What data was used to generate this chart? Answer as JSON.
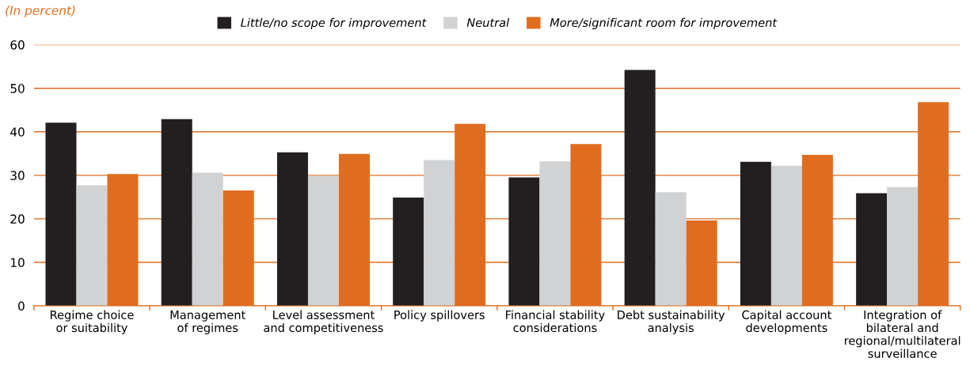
{
  "chart_data": {
    "type": "bar",
    "subtitle": "(In percent)",
    "categories": [
      "Regime choice\nor suitability",
      "Management\nof regimes",
      "Level assessment\nand competitiveness",
      "Policy spillovers",
      "Financial stability\nconsiderations",
      "Debt sustainability\nanalysis",
      "Capital account\ndevelopments",
      "Integration of\nbilateral and\nregional/multilateral\nsurveillance"
    ],
    "series": [
      {
        "name": "Little/no scope for improvement",
        "color": "#231f20",
        "values": [
          42.1,
          42.9,
          35.3,
          24.9,
          29.5,
          54.2,
          33.1,
          25.9
        ]
      },
      {
        "name": "Neutral",
        "color": "#d1d2d4",
        "values": [
          27.7,
          30.6,
          29.9,
          33.5,
          33.2,
          26.1,
          32.2,
          27.3
        ]
      },
      {
        "name": "More/significant room for improvement",
        "color": "#e06d1f",
        "values": [
          30.3,
          26.5,
          34.9,
          41.8,
          37.2,
          19.6,
          34.7,
          46.8
        ]
      }
    ],
    "ylim": [
      0,
      60
    ],
    "yticks": [
      0,
      10,
      20,
      30,
      40,
      50,
      60
    ],
    "grid": "y",
    "legend": "top"
  }
}
